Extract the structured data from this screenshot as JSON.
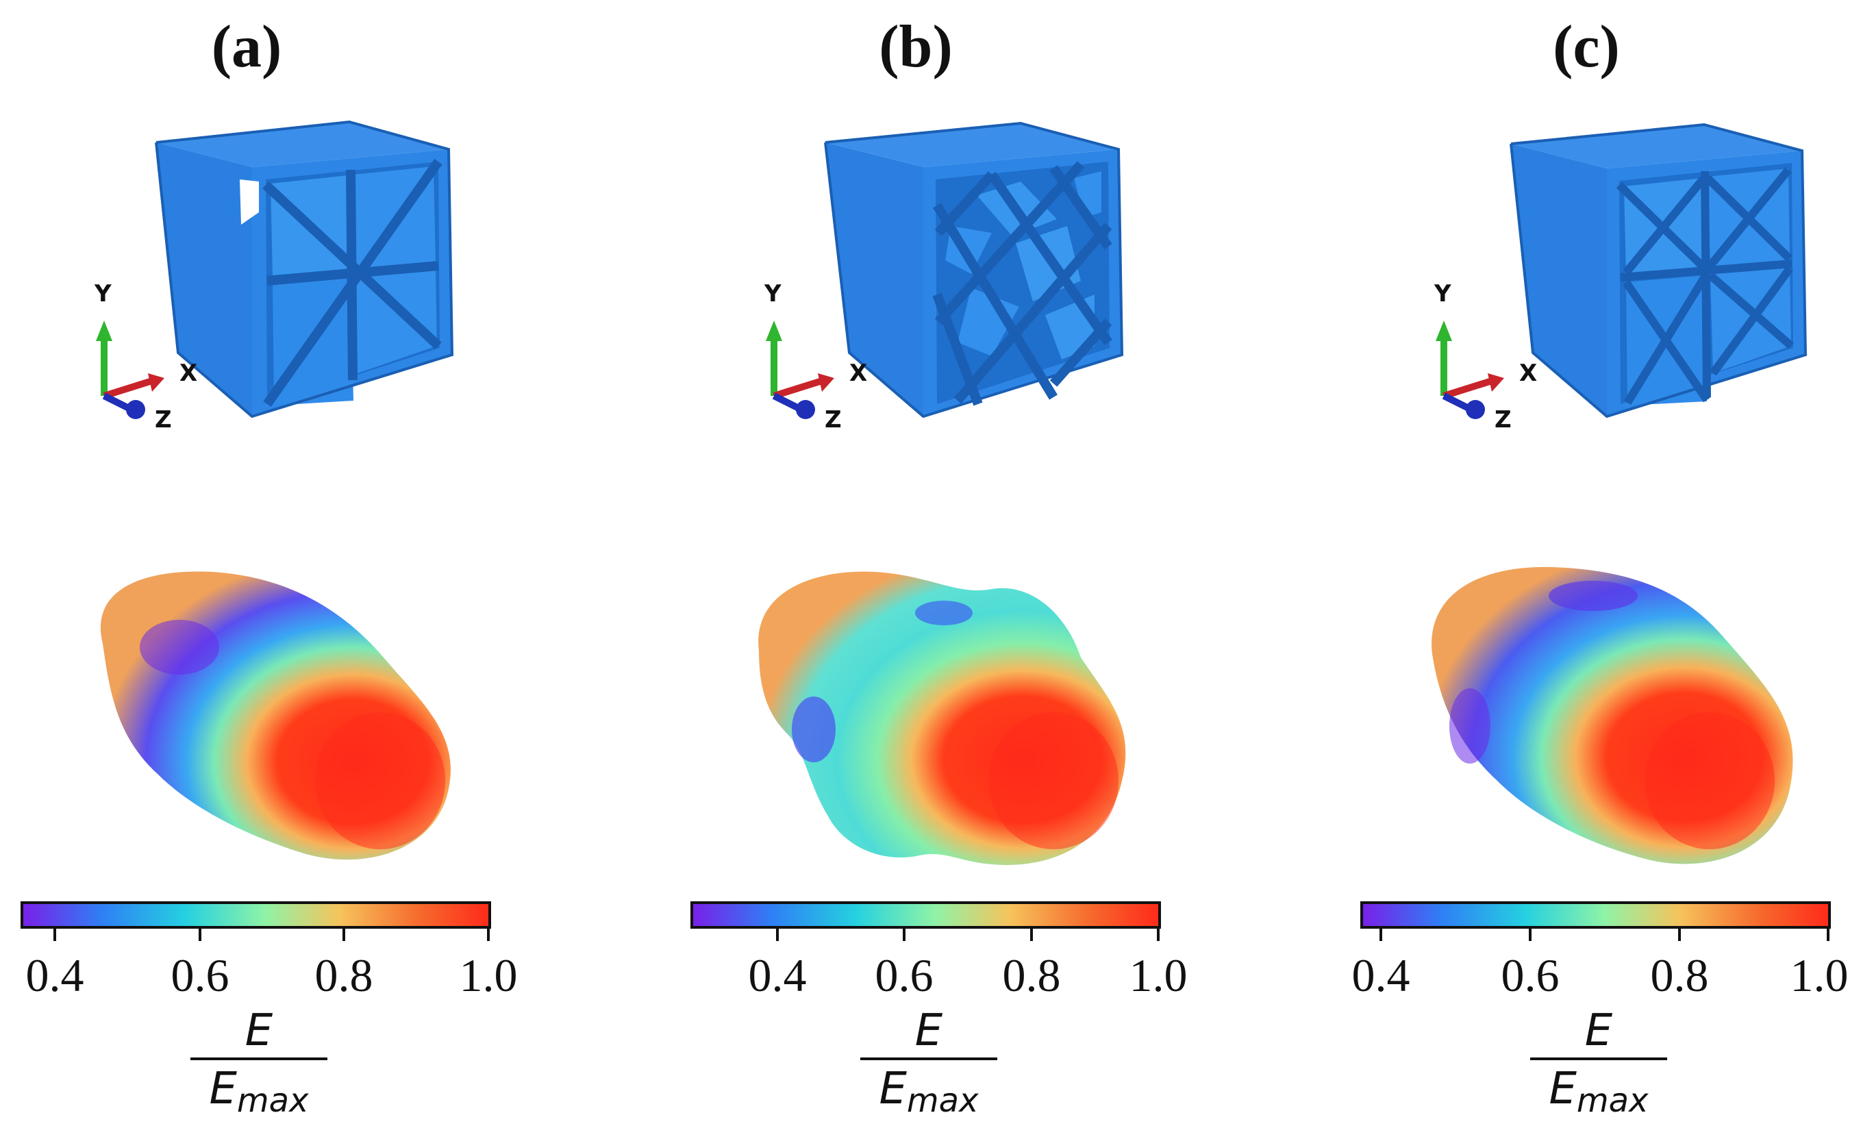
{
  "panels": [
    {
      "label": "(a)",
      "ticks": [
        "0.4",
        "0.6",
        "0.8",
        "1.0"
      ],
      "pattern": "star-cross"
    },
    {
      "label": "(b)",
      "ticks": [
        "0.4",
        "0.6",
        "0.8",
        "1.0"
      ],
      "pattern": "diamond-lattice"
    },
    {
      "label": "(c)",
      "ticks": [
        "0.4",
        "0.6",
        "0.8",
        "1.0"
      ],
      "pattern": "double-x"
    }
  ],
  "axes": {
    "y": "Y",
    "x": "X",
    "z": "Z"
  },
  "colorbar": {
    "numerator": "E",
    "denominator_base": "E",
    "denominator_sub": "max",
    "colors": [
      "#7a1fe8",
      "#2f7ff5",
      "#25d1e0",
      "#8ff3a6",
      "#f6c35c",
      "#f66a2d",
      "#ff2a1a"
    ]
  },
  "colors": {
    "cube": "#2d86e6",
    "cube_dark": "#1a5fb4",
    "axis_y": "#2fb52f",
    "axis_x": "#c8242a",
    "axis_z": "#1f2fb8"
  }
}
